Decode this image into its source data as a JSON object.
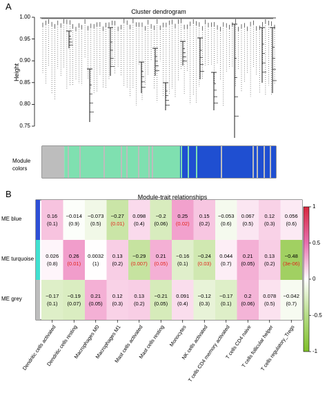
{
  "panel_a": {
    "label": "A",
    "title": "Cluster dendrogram",
    "ylabel": "Height",
    "yticks": [
      "1.00",
      "0.95",
      "0.90",
      "0.85",
      "0.80",
      "0.75"
    ],
    "module_label_line1": "Module",
    "module_label_line2": "colors",
    "module_color_map": {
      "grey": "#bdbdbd",
      "turquoise": "#7fe0b0",
      "blue": "#1f4fd1"
    }
  },
  "panel_b": {
    "label": "B",
    "title": "Module-trait relationships",
    "colorbar_ticks": [
      "1",
      "0.5",
      "0",
      "-0.5",
      "-1"
    ],
    "colors": {
      "positive": "#e0218a",
      "negative": "#8cc63f",
      "significant_text": "#e2231a"
    }
  },
  "chart_data": {
    "type": "heatmap",
    "title": "Module-trait relationships",
    "rows": [
      {
        "name": "ME blue",
        "color": "#2d4fd6"
      },
      {
        "name": "ME turquoise",
        "color": "#40e0d0"
      },
      {
        "name": "ME grey",
        "color": "#bdbdbd"
      }
    ],
    "columns": [
      "Dendritic cells activated",
      "Dendritic cells resting",
      "Macrophages M0",
      "Macrophages M1",
      "Mast cells activated",
      "Mast cells resting",
      "Monocytes",
      "NK cells activated",
      "T cells CD4 memory activated",
      "T cells CD4 naive",
      "T cells follicular helper",
      "T cells regulatory_Tregs"
    ],
    "correlations": [
      [
        0.16,
        -0.014,
        -0.073,
        -0.27,
        0.098,
        -0.2,
        0.25,
        0.15,
        -0.053,
        0.067,
        0.12,
        0.056
      ],
      [
        0.026,
        0.26,
        0.0032,
        0.13,
        -0.29,
        0.21,
        -0.16,
        -0.24,
        0.044,
        0.21,
        0.13,
        -0.48
      ],
      [
        -0.17,
        -0.19,
        0.21,
        0.12,
        0.13,
        -0.21,
        0.091,
        -0.12,
        -0.17,
        0.2,
        0.078,
        -0.042
      ]
    ],
    "correlation_labels": [
      [
        "0.16",
        "−0.014",
        "−0.073",
        "−0.27",
        "0.098",
        "−0.2",
        "0.25",
        "0.15",
        "−0.053",
        "0.067",
        "0.12",
        "0.056"
      ],
      [
        "0.026",
        "0.26",
        "0.0032",
        "0.13",
        "−0.29",
        "0.21",
        "−0.16",
        "−0.24",
        "0.044",
        "0.21",
        "0.13",
        "−0.48"
      ],
      [
        "−0.17",
        "−0.19",
        "0.21",
        "0.12",
        "0.13",
        "−0.21",
        "0.091",
        "−0.12",
        "−0.17",
        "0.2",
        "0.078",
        "−0.042"
      ]
    ],
    "pvalues": [
      [
        "(0.1)",
        "(0.9)",
        "(0.5)",
        "(0.01)",
        "(0.4)",
        "(0.06)",
        "(0.02)",
        "(0.2)",
        "(0.6)",
        "(0.5)",
        "(0.3)",
        "(0.6)"
      ],
      [
        "(0.8)",
        "(0.01)",
        "(1)",
        "(0.2)",
        "(0.007)",
        "(0.05)",
        "(0.1)",
        "(0.03)",
        "(0.7)",
        "(0.05)",
        "(0.2)",
        "(3e-06)"
      ],
      [
        "(0.1)",
        "(0.07)",
        "(0.05)",
        "(0.3)",
        "(0.2)",
        "(0.05)",
        "(0.4)",
        "(0.3)",
        "(0.1)",
        "(0.06)",
        "(0.5)",
        "(0.7)"
      ]
    ],
    "significant": [
      [
        false,
        false,
        false,
        true,
        false,
        false,
        true,
        false,
        false,
        false,
        false,
        false
      ],
      [
        false,
        true,
        false,
        false,
        true,
        true,
        false,
        true,
        false,
        false,
        false,
        true
      ],
      [
        false,
        false,
        false,
        false,
        false,
        false,
        false,
        false,
        false,
        false,
        false,
        false
      ]
    ],
    "color_range": [
      -1,
      1
    ],
    "module_color_bar": [
      {
        "color": "grey",
        "fraction": 0.095
      },
      {
        "color": "turquoise",
        "fraction": 0.495
      },
      {
        "color": "blue",
        "fraction": 0.41
      }
    ]
  }
}
